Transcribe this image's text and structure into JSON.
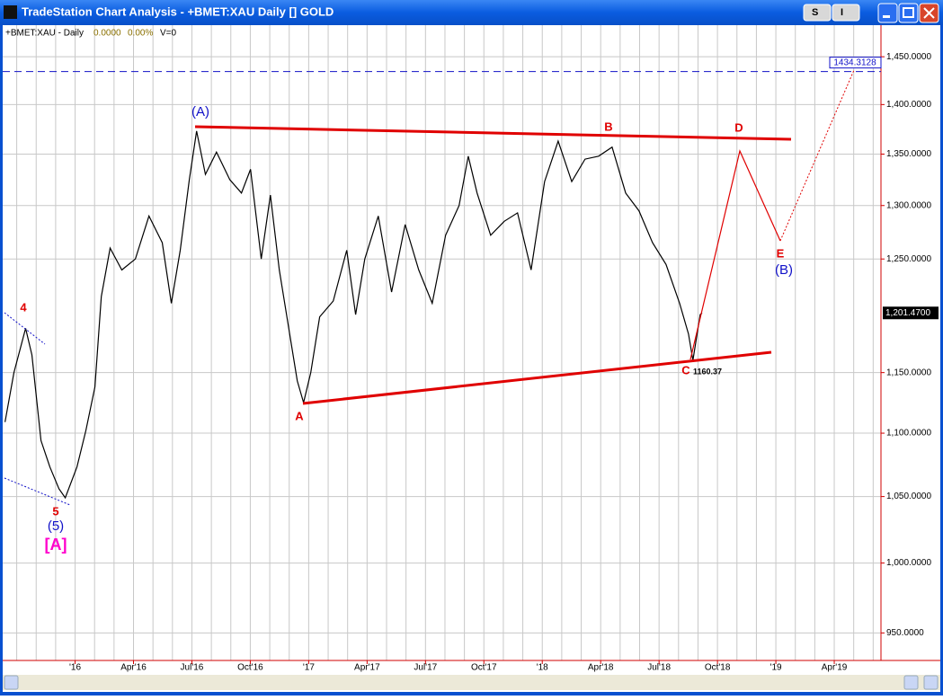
{
  "window": {
    "title": "TradeStation Chart Analysis - +BMET:XAU Daily [] GOLD",
    "buttons": [
      "S",
      "I"
    ]
  },
  "chart_data": {
    "type": "line",
    "header": {
      "symbol": "+BMET:XAU - Daily",
      "change": "0.0000",
      "change_pct": "0.00%",
      "volume": "V=0"
    },
    "log_scale": true,
    "grid": true,
    "color": "#000000",
    "xlim": [
      2015.69,
      2019.45
    ],
    "xticks": [
      {
        "value": 2016.0,
        "label": "'16"
      },
      {
        "value": 2016.25,
        "label": "Apr'16"
      },
      {
        "value": 2016.5,
        "label": "Jul'16"
      },
      {
        "value": 2016.75,
        "label": "Oct'16"
      },
      {
        "value": 2017.0,
        "label": "'17"
      },
      {
        "value": 2017.25,
        "label": "Apr'17"
      },
      {
        "value": 2017.5,
        "label": "Jul'17"
      },
      {
        "value": 2017.75,
        "label": "Oct'17"
      },
      {
        "value": 2018.0,
        "label": "'18"
      },
      {
        "value": 2018.25,
        "label": "Apr'18"
      },
      {
        "value": 2018.5,
        "label": "Jul'18"
      },
      {
        "value": 2018.75,
        "label": "Oct'18"
      },
      {
        "value": 2019.0,
        "label": "'19"
      },
      {
        "value": 2019.25,
        "label": "Apr'19"
      }
    ],
    "ylim": [
      931,
      1484
    ],
    "yticks": [
      {
        "value": 950,
        "label": "950.0000"
      },
      {
        "value": 1000,
        "label": "1,000.0000"
      },
      {
        "value": 1050,
        "label": "1,050.0000"
      },
      {
        "value": 1100,
        "label": "1,100.0000"
      },
      {
        "value": 1150,
        "label": "1,150.0000"
      },
      {
        "value": 1250,
        "label": "1,250.0000"
      },
      {
        "value": 1300,
        "label": "1,300.0000"
      },
      {
        "value": 1350,
        "label": "1,350.0000"
      },
      {
        "value": 1400,
        "label": "1,400.0000"
      },
      {
        "value": 1450,
        "label": "1,450.0000"
      }
    ],
    "x": [
      2015.7,
      2015.738,
      2015.788,
      2015.815,
      2015.854,
      2015.892,
      2015.931,
      2015.958,
      2016.008,
      2016.046,
      2016.085,
      2016.112,
      2016.15,
      2016.2,
      2016.258,
      2016.316,
      2016.373,
      2016.412,
      2016.45,
      2016.489,
      2016.52,
      2016.558,
      2016.605,
      2016.662,
      2016.712,
      2016.751,
      2016.797,
      2016.836,
      2016.874,
      2016.913,
      2016.951,
      2016.978,
      2017.009,
      2017.047,
      2017.105,
      2017.163,
      2017.201,
      2017.24,
      2017.298,
      2017.355,
      2017.413,
      2017.471,
      2017.529,
      2017.586,
      2017.644,
      2017.683,
      2017.721,
      2017.779,
      2017.837,
      2017.894,
      2017.952,
      2018.01,
      2018.068,
      2018.126,
      2018.183,
      2018.241,
      2018.299,
      2018.357,
      2018.414,
      2018.472,
      2018.53,
      2018.588,
      2018.626,
      2018.645,
      2018.676,
      2018.684
    ],
    "values": [
      1109,
      1150,
      1188,
      1165,
      1094,
      1073,
      1056,
      1049,
      1073,
      1102,
      1138,
      1216,
      1260,
      1240,
      1250,
      1290,
      1265,
      1210,
      1258,
      1325,
      1373,
      1330,
      1352,
      1325,
      1312,
      1335,
      1250,
      1310,
      1240,
      1190,
      1143,
      1125,
      1150,
      1198,
      1212,
      1258,
      1200,
      1250,
      1290,
      1220,
      1282,
      1240,
      1210,
      1272,
      1300,
      1348,
      1312,
      1272,
      1285,
      1293,
      1240,
      1323,
      1363,
      1323,
      1345,
      1348,
      1357,
      1312,
      1295,
      1265,
      1245,
      1210,
      1183,
      1160.37,
      1200,
      1201.47
    ],
    "last_price": {
      "value": 1201.47,
      "label": "1,201.4700"
    },
    "hline": 1434.3128,
    "annotations": [
      "4",
      "5",
      "(5)",
      "[A]",
      "(A)",
      "A",
      "B",
      "C",
      "1160.37",
      "D",
      "E",
      "(B)"
    ]
  }
}
